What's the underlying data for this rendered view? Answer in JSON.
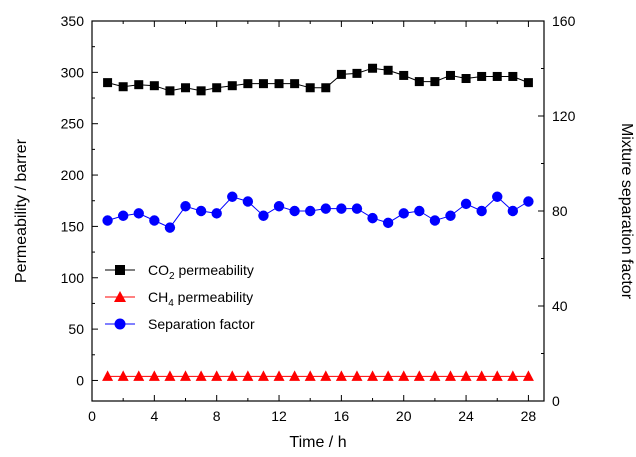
{
  "chart_data": {
    "type": "line",
    "xlabel": "Time / h",
    "ylabel_left": "Permeability / barrer",
    "ylabel_right": "Mixture separation factor",
    "xlim": [
      0,
      29
    ],
    "ylim_left": [
      -20,
      350
    ],
    "ylim_right": [
      0,
      160
    ],
    "x_ticks": [
      0,
      4,
      8,
      12,
      16,
      20,
      24,
      28
    ],
    "y_left_ticks": [
      0,
      50,
      100,
      150,
      200,
      250,
      300,
      350
    ],
    "y_right_ticks": [
      0,
      40,
      80,
      120,
      160
    ],
    "x": [
      1,
      2,
      3,
      4,
      5,
      6,
      7,
      8,
      9,
      10,
      11,
      12,
      13,
      14,
      15,
      16,
      17,
      18,
      19,
      20,
      21,
      22,
      23,
      24,
      25,
      26,
      27,
      28
    ],
    "legend_position": "middle-left",
    "series": [
      {
        "name_main": "CO",
        "name_sub": "2",
        "name_rest": " permeability",
        "axis": "left",
        "marker": "square",
        "color": "#000000",
        "values": [
          290,
          286,
          288,
          287,
          282,
          285,
          282,
          285,
          287,
          289,
          289,
          289,
          289,
          285,
          285,
          298,
          299,
          304,
          302,
          297,
          291,
          291,
          297,
          294,
          296,
          296,
          296,
          290
        ]
      },
      {
        "name_main": "CH",
        "name_sub": "4",
        "name_rest": " permeability",
        "axis": "left",
        "marker": "triangle",
        "color": "#ff0000",
        "values": [
          4,
          4,
          4,
          4,
          4,
          4,
          4,
          4,
          4,
          4,
          4,
          4,
          4,
          4,
          4,
          4,
          4,
          4,
          4,
          4,
          4,
          4,
          4,
          4,
          4,
          4,
          4,
          4
        ]
      },
      {
        "name_main": "Separation factor",
        "name_sub": "",
        "name_rest": "",
        "axis": "right",
        "marker": "circle",
        "color": "#0000ff",
        "values": [
          76,
          78,
          79,
          76,
          73,
          82,
          80,
          79,
          86,
          84,
          78,
          82,
          80,
          80,
          81,
          81,
          81,
          77,
          75,
          79,
          80,
          76,
          78,
          83,
          80,
          86,
          80,
          84
        ]
      }
    ]
  }
}
